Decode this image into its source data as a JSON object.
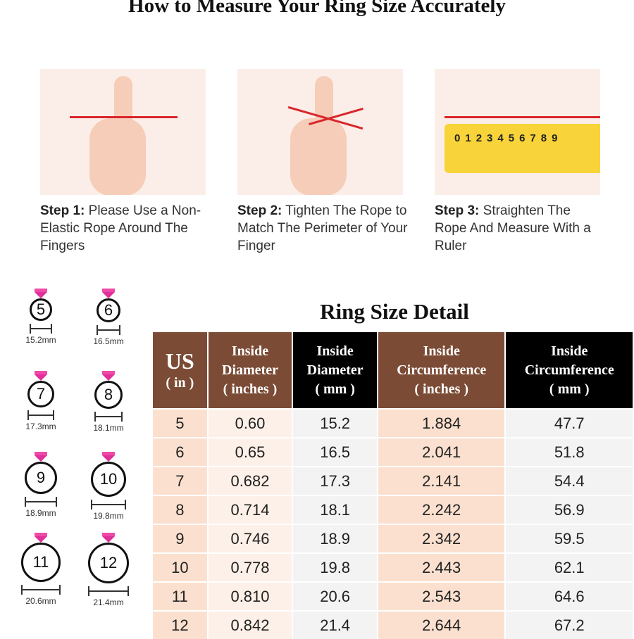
{
  "title": "How to Measure Your Ring Size Accurately",
  "steps": [
    {
      "label": "Step 1:",
      "text": "Please Use a Non-Elastic Rope Around The Fingers"
    },
    {
      "label": "Step 2:",
      "text": "Tighten The Rope to Match The Perimeter of Your Finger"
    },
    {
      "label": "Step 3:",
      "text": "Straighten The Rope And Measure With a Ruler"
    }
  ],
  "ruler_numbers": [
    "0",
    "1",
    "2",
    "3",
    "4",
    "5",
    "6",
    "7",
    "8",
    "9"
  ],
  "rings": [
    {
      "size": "5",
      "mm": "15.2mm"
    },
    {
      "size": "6",
      "mm": "16.5mm"
    },
    {
      "size": "7",
      "mm": "17.3mm"
    },
    {
      "size": "8",
      "mm": "18.1mm"
    },
    {
      "size": "9",
      "mm": "18.9mm"
    },
    {
      "size": "10",
      "mm": "19.8mm"
    },
    {
      "size": "11",
      "mm": "20.6mm"
    },
    {
      "size": "12",
      "mm": "21.4mm"
    }
  ],
  "table": {
    "title": "Ring Size Detail",
    "headers": [
      [
        "US",
        "( in )"
      ],
      [
        "Inside",
        "Diameter",
        "( inches )"
      ],
      [
        "Inside",
        "Diameter",
        "( mm )"
      ],
      [
        "Inside",
        "Circumference",
        "( inches )"
      ],
      [
        "Inside",
        "Circumference",
        "( mm )"
      ]
    ],
    "rows": [
      [
        "5",
        "0.60",
        "15.2",
        "1.884",
        "47.7"
      ],
      [
        "6",
        "0.65",
        "16.5",
        "2.041",
        "51.8"
      ],
      [
        "7",
        "0.682",
        "17.3",
        "2.141",
        "54.4"
      ],
      [
        "8",
        "0.714",
        "18.1",
        "2.242",
        "56.9"
      ],
      [
        "9",
        "0.746",
        "18.9",
        "2.342",
        "59.5"
      ],
      [
        "10",
        "0.778",
        "19.8",
        "2.443",
        "62.1"
      ],
      [
        "11",
        "0.810",
        "20.6",
        "2.543",
        "64.6"
      ],
      [
        "12",
        "0.842",
        "21.4",
        "2.644",
        "67.2"
      ]
    ]
  },
  "colors": {
    "brown": "#7b4b35",
    "black": "#000000",
    "gem": "#e0309a",
    "ruler": "#f8d33a",
    "rope": "#d9262b"
  }
}
